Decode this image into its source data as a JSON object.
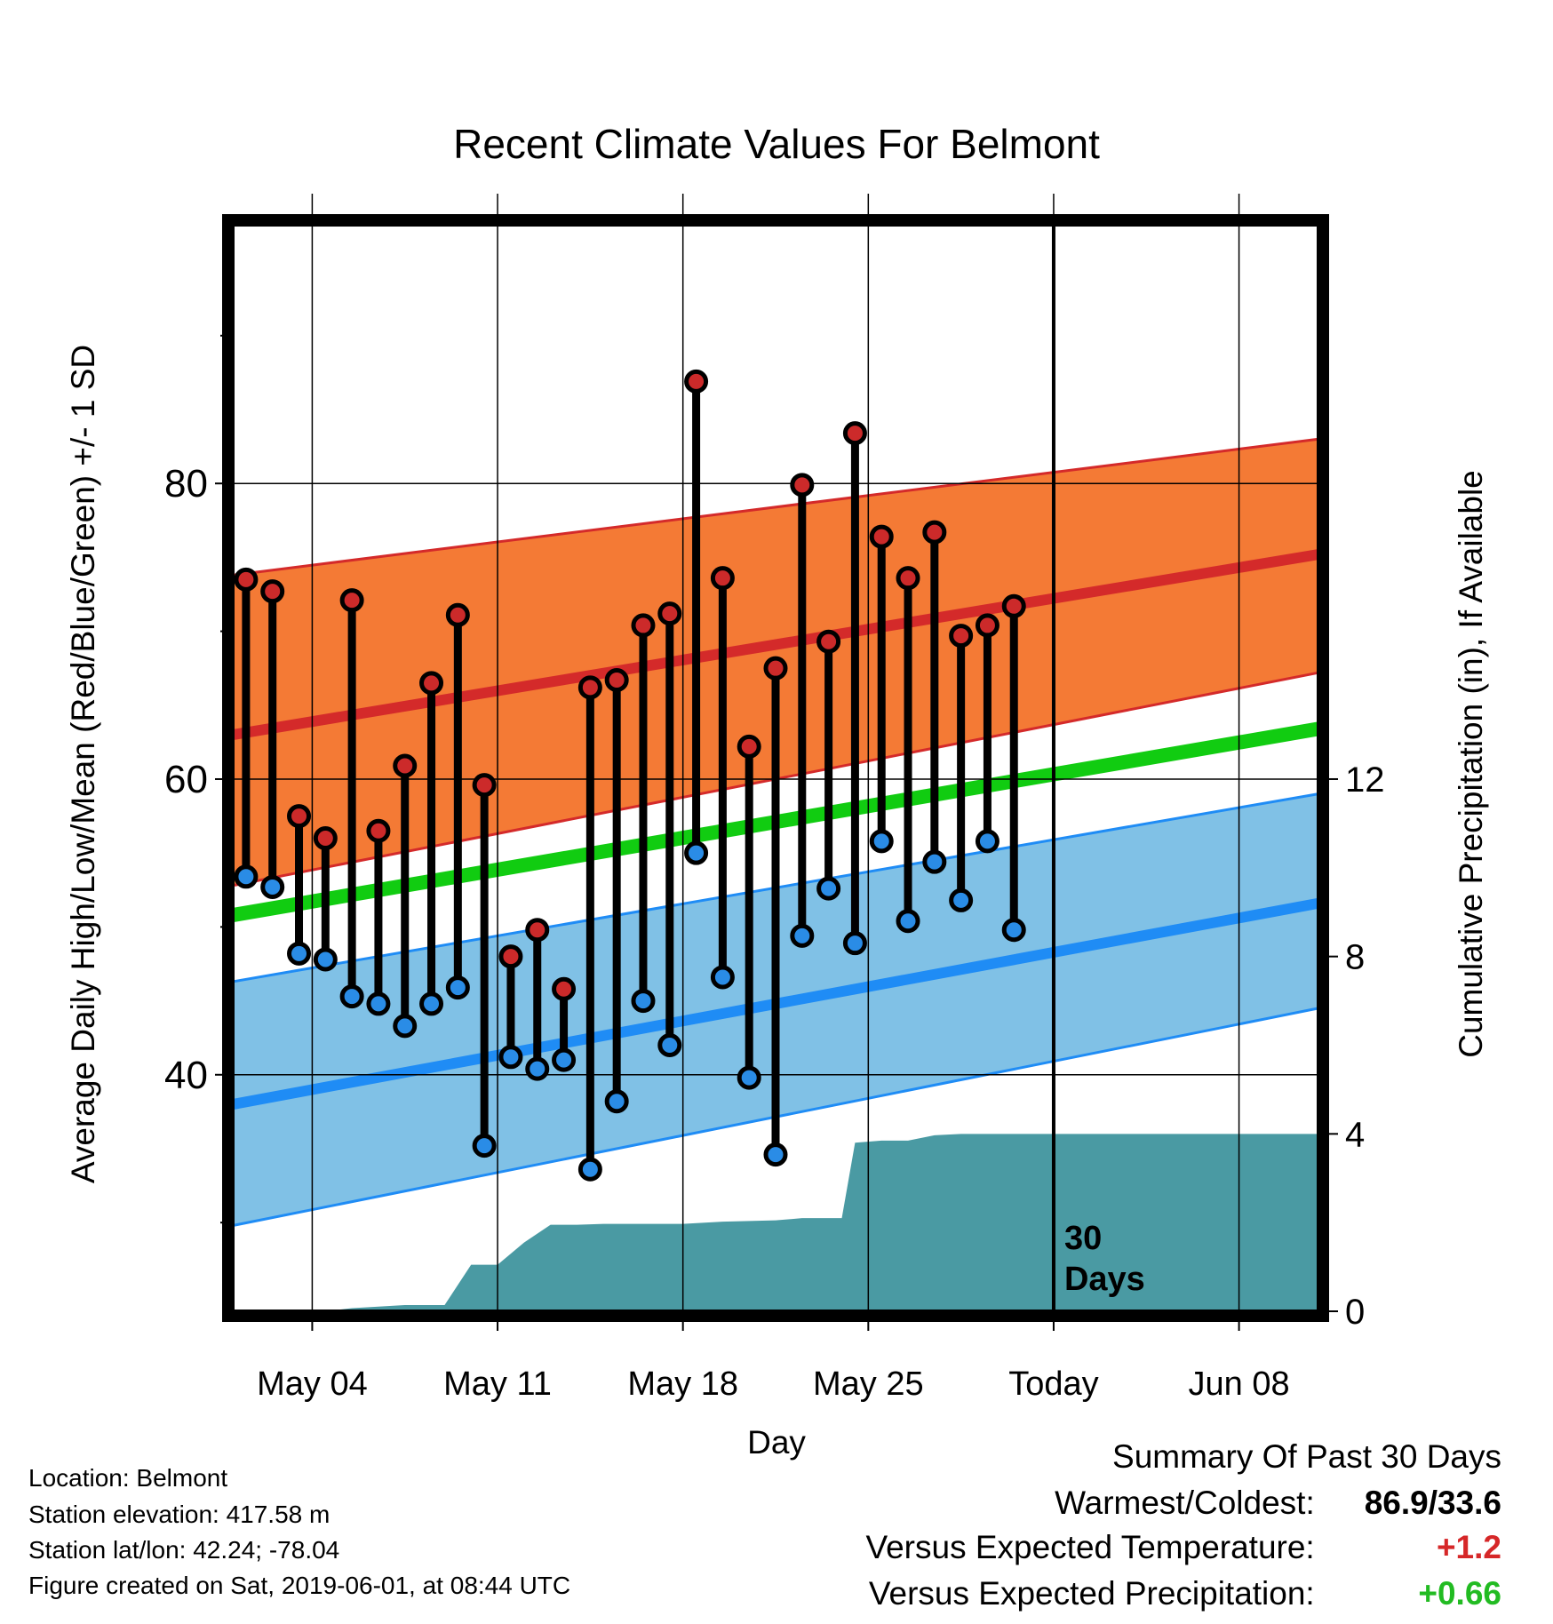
{
  "chart_data": {
    "type": "line",
    "title": "Recent Climate Values For Belmont",
    "xlabel": "Day",
    "ylabel": "Average Daily High/Low/Mean (Red/Blue/Green) +/- 1 SD",
    "y2label": "Cumulative Precipitation (in), If Available",
    "ylim": [
      24,
      97.5
    ],
    "y2lim": [
      0,
      24.5
    ],
    "yticks": [
      40,
      60,
      80
    ],
    "y2ticks": [
      0,
      4,
      8,
      12
    ],
    "xlim": [
      -0.5,
      40.5
    ],
    "xtick_positions": [
      2.5,
      9.5,
      16.5,
      23.5,
      30.5,
      37.5
    ],
    "xticks": [
      "May 04",
      "May 11",
      "May 18",
      "May 25",
      "Today",
      "Jun 08"
    ],
    "grid": true,
    "today_marker": {
      "x": 30.5,
      "label_line1": "30",
      "label_line2": "Days"
    },
    "daily_high": [
      73.5,
      72.7,
      57.5,
      56.0,
      72.1,
      56.5,
      60.9,
      66.5,
      71.1,
      59.6,
      48.0,
      49.8,
      45.8,
      66.2,
      66.7,
      70.4,
      71.2,
      86.9,
      73.6,
      62.2,
      67.5,
      79.9,
      69.3,
      83.4,
      76.4,
      73.6,
      76.7,
      69.7,
      70.4,
      71.7
    ],
    "daily_low": [
      53.4,
      52.7,
      48.2,
      47.8,
      45.3,
      44.8,
      43.3,
      44.8,
      45.9,
      35.2,
      41.2,
      40.4,
      41.0,
      33.6,
      38.2,
      45.0,
      42.0,
      55.0,
      46.6,
      39.8,
      34.6,
      49.4,
      52.6,
      48.9,
      55.8,
      50.4,
      54.4,
      51.8,
      55.8,
      49.8
    ],
    "normal_high": {
      "start": 63.0,
      "end": 75.2
    },
    "normal_high_sd": {
      "start_low": 52.8,
      "start_high": 73.8,
      "end_low": 67.2,
      "end_high": 83.0
    },
    "normal_mean": {
      "start": 50.8,
      "end": 63.4
    },
    "normal_low": {
      "start": 38.0,
      "end": 51.6
    },
    "normal_low_sd": {
      "start_low": 29.8,
      "start_high": 46.3,
      "end_low": 44.5,
      "end_high": 59.0
    },
    "cumulative_precip": [
      [
        -0.5,
        0
      ],
      [
        3,
        0
      ],
      [
        4,
        0.07
      ],
      [
        6,
        0.14
      ],
      [
        7.5,
        0.14
      ],
      [
        8.5,
        1.05
      ],
      [
        9.5,
        1.05
      ],
      [
        10.5,
        1.55
      ],
      [
        11.5,
        1.95
      ],
      [
        12.5,
        1.95
      ],
      [
        13.5,
        1.97
      ],
      [
        16.5,
        1.97
      ],
      [
        18,
        2.02
      ],
      [
        20,
        2.05
      ],
      [
        21,
        2.1
      ],
      [
        22.5,
        2.1
      ],
      [
        23,
        3.8
      ],
      [
        24,
        3.85
      ],
      [
        25,
        3.85
      ],
      [
        26,
        3.97
      ],
      [
        27,
        4.0
      ],
      [
        40.5,
        4.0
      ]
    ],
    "colors": {
      "high_band": "#f47a35",
      "high_line": "#d42a2a",
      "low_band": "#80c1e6",
      "low_line": "#1f8cf5",
      "mean_line": "#11cc11",
      "precip": "#4a9aa3",
      "high_marker": "#cc2a2a",
      "low_marker": "#2a8ce6"
    }
  },
  "info": {
    "location": "Location: Belmont",
    "elevation": "Station elevation: 417.58 m",
    "latlon": "Station lat/lon: 42.24; -78.04",
    "created": "Figure created on Sat, 2019-06-01, at 08:44 UTC"
  },
  "summary": {
    "title": "Summary Of Past 30 Days",
    "warm_cold_label": "Warmest/Coldest:",
    "warm_cold_value": "86.9/33.6",
    "temp_label": "Versus Expected Temperature:",
    "temp_value": "+1.2",
    "precip_label": "Versus Expected Precipitation:",
    "precip_value": "+0.66"
  }
}
